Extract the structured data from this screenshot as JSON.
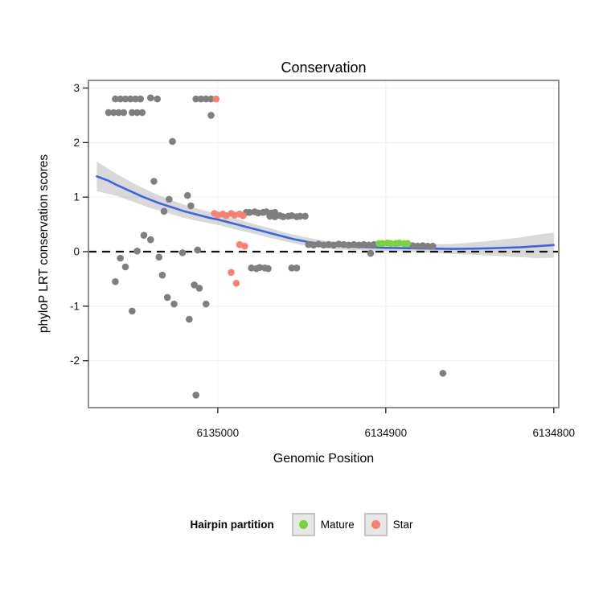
{
  "title": "Conservation",
  "axes": {
    "x_label": "Genomic Position",
    "y_label": "phyloP LRT conservation scores"
  },
  "legend": {
    "title": "Hairpin partition",
    "items": [
      {
        "label": "Mature",
        "color": "#7bd33b"
      },
      {
        "label": "Star",
        "color": "#fa8072"
      }
    ]
  },
  "chart_data": {
    "type": "scatter",
    "title": "Conservation",
    "xlabel": "Genomic Position",
    "ylabel": "phyloP LRT conservation scores",
    "x_reversed": true,
    "x_domain": [
      6135077,
      6134797
    ],
    "y_domain": [
      -2.86,
      3.14
    ],
    "x_ticks": [
      {
        "value": 6135000,
        "label": "6135000"
      },
      {
        "value": 6134900,
        "label": "6134900"
      },
      {
        "value": 6134800,
        "label": "6134800"
      }
    ],
    "y_ticks": [
      {
        "value": 3,
        "label": "3"
      },
      {
        "value": 2,
        "label": "2"
      },
      {
        "value": 1,
        "label": "1"
      },
      {
        "value": 0,
        "label": "0"
      },
      {
        "value": -1,
        "label": "-1"
      },
      {
        "value": -2,
        "label": "-2"
      }
    ],
    "zero_line": 0,
    "colors": {
      "g": "#7f7f7f",
      "m": "#7bd33b",
      "s": "#fa8072",
      "smooth": "#3b65e6",
      "band": "rgba(130,130,130,0.3)",
      "grid": "#f0f0f0",
      "border": "#8f8f8f",
      "zero": "#111111"
    },
    "points": [
      [
        6135065,
        2.55,
        "g"
      ],
      [
        6135062,
        2.55,
        "g"
      ],
      [
        6135059,
        2.55,
        "g"
      ],
      [
        6135056,
        2.55,
        "g"
      ],
      [
        6135051,
        2.55,
        "g"
      ],
      [
        6135048,
        2.55,
        "g"
      ],
      [
        6135045,
        2.55,
        "g"
      ],
      [
        6135061,
        2.8,
        "g"
      ],
      [
        6135058,
        2.8,
        "g"
      ],
      [
        6135055,
        2.8,
        "g"
      ],
      [
        6135052,
        2.8,
        "g"
      ],
      [
        6135049,
        2.8,
        "g"
      ],
      [
        6135046,
        2.8,
        "g"
      ],
      [
        6135040,
        2.82,
        "g"
      ],
      [
        6135036,
        2.8,
        "g"
      ],
      [
        6135013,
        2.8,
        "g"
      ],
      [
        6135010,
        2.8,
        "g"
      ],
      [
        6135007,
        2.8,
        "g"
      ],
      [
        6135004,
        2.8,
        "g"
      ],
      [
        6135001,
        2.8,
        "s"
      ],
      [
        6135004,
        2.5,
        "g"
      ],
      [
        6135027,
        2.02,
        "g"
      ],
      [
        6135038,
        1.29,
        "g"
      ],
      [
        6135032,
        0.74,
        "g"
      ],
      [
        6135029,
        0.96,
        "g"
      ],
      [
        6135018,
        1.03,
        "g"
      ],
      [
        6135016,
        0.84,
        "g"
      ],
      [
        6135044,
        0.3,
        "g"
      ],
      [
        6135040,
        0.22,
        "g"
      ],
      [
        6135048,
        0.01,
        "g"
      ],
      [
        6135058,
        -0.12,
        "g"
      ],
      [
        6135055,
        -0.28,
        "g"
      ],
      [
        6135061,
        -0.55,
        "g"
      ],
      [
        6135051,
        -1.09,
        "g"
      ],
      [
        6135035,
        -0.1,
        "g"
      ],
      [
        6135033,
        -0.43,
        "g"
      ],
      [
        6135030,
        -0.84,
        "g"
      ],
      [
        6135026,
        -0.96,
        "g"
      ],
      [
        6135017,
        -1.24,
        "g"
      ],
      [
        6135014,
        -0.61,
        "g"
      ],
      [
        6135011,
        -0.67,
        "g"
      ],
      [
        6135007,
        -0.96,
        "g"
      ],
      [
        6135021,
        -0.02,
        "g"
      ],
      [
        6135012,
        0.03,
        "g"
      ],
      [
        6135013,
        -2.63,
        "g"
      ],
      [
        6135002,
        0.7,
        "s"
      ],
      [
        6135000,
        0.67,
        "s"
      ],
      [
        6134997,
        0.69,
        "s"
      ],
      [
        6134995,
        0.66,
        "s"
      ],
      [
        6134992,
        0.7,
        "s"
      ],
      [
        6134990,
        0.67,
        "s"
      ],
      [
        6134987,
        0.69,
        "s"
      ],
      [
        6134985,
        0.66,
        "s"
      ],
      [
        6134983,
        0.72,
        "g"
      ],
      [
        6134981,
        0.72,
        "g"
      ],
      [
        6134978,
        0.73,
        "g"
      ],
      [
        6134976,
        0.71,
        "g"
      ],
      [
        6134973,
        0.72,
        "g"
      ],
      [
        6134971,
        0.73,
        "g"
      ],
      [
        6134968,
        0.71,
        "g"
      ],
      [
        6134966,
        0.72,
        "g"
      ],
      [
        6134969,
        0.65,
        "g"
      ],
      [
        6134966,
        0.64,
        "g"
      ],
      [
        6134963,
        0.66,
        "g"
      ],
      [
        6134961,
        0.64,
        "g"
      ],
      [
        6134958,
        0.65,
        "g"
      ],
      [
        6134956,
        0.66,
        "g"
      ],
      [
        6134953,
        0.64,
        "g"
      ],
      [
        6134951,
        0.65,
        "g"
      ],
      [
        6134948,
        0.65,
        "g"
      ],
      [
        6134987,
        0.13,
        "s"
      ],
      [
        6134984,
        0.1,
        "s"
      ],
      [
        6134992,
        -0.38,
        "s"
      ],
      [
        6134989,
        -0.58,
        "s"
      ],
      [
        6134980,
        -0.3,
        "g"
      ],
      [
        6134977,
        -0.31,
        "g"
      ],
      [
        6134975,
        -0.29,
        "g"
      ],
      [
        6134972,
        -0.3,
        "g"
      ],
      [
        6134970,
        -0.31,
        "g"
      ],
      [
        6134956,
        -0.3,
        "g"
      ],
      [
        6134953,
        -0.3,
        "g"
      ],
      [
        6134946,
        0.13,
        "g"
      ],
      [
        6134943,
        0.12,
        "g"
      ],
      [
        6134940,
        0.14,
        "g"
      ],
      [
        6134937,
        0.12,
        "g"
      ],
      [
        6134934,
        0.13,
        "g"
      ],
      [
        6134931,
        0.12,
        "g"
      ],
      [
        6134928,
        0.14,
        "g"
      ],
      [
        6134925,
        0.13,
        "g"
      ],
      [
        6134922,
        0.12,
        "g"
      ],
      [
        6134919,
        0.13,
        "g"
      ],
      [
        6134916,
        0.12,
        "g"
      ],
      [
        6134913,
        0.13,
        "g"
      ],
      [
        6134910,
        0.12,
        "g"
      ],
      [
        6134907,
        0.13,
        "g"
      ],
      [
        6134909,
        -0.03,
        "g"
      ],
      [
        6134904,
        0.15,
        "m"
      ],
      [
        6134902,
        0.15,
        "m"
      ],
      [
        6134899,
        0.16,
        "m"
      ],
      [
        6134897,
        0.15,
        "m"
      ],
      [
        6134894,
        0.15,
        "m"
      ],
      [
        6134892,
        0.16,
        "m"
      ],
      [
        6134889,
        0.15,
        "m"
      ],
      [
        6134887,
        0.15,
        "m"
      ],
      [
        6134884,
        0.11,
        "g"
      ],
      [
        6134881,
        0.1,
        "g"
      ],
      [
        6134878,
        0.11,
        "g"
      ],
      [
        6134875,
        0.1,
        "g"
      ],
      [
        6134872,
        0.1,
        "g"
      ],
      [
        6134866,
        -2.23,
        "g"
      ]
    ],
    "smooth_line": [
      [
        6135072,
        1.38
      ],
      [
        6135065,
        1.3
      ],
      [
        6135060,
        1.22
      ],
      [
        6135055,
        1.15
      ],
      [
        6135050,
        1.08
      ],
      [
        6135045,
        1.01
      ],
      [
        6135040,
        0.95
      ],
      [
        6135035,
        0.89
      ],
      [
        6135030,
        0.84
      ],
      [
        6135025,
        0.79
      ],
      [
        6135020,
        0.74
      ],
      [
        6135015,
        0.7
      ],
      [
        6135010,
        0.66
      ],
      [
        6135005,
        0.62
      ],
      [
        6135000,
        0.59
      ],
      [
        6134995,
        0.55
      ],
      [
        6134990,
        0.51
      ],
      [
        6134985,
        0.47
      ],
      [
        6134980,
        0.43
      ],
      [
        6134975,
        0.39
      ],
      [
        6134970,
        0.35
      ],
      [
        6134965,
        0.31
      ],
      [
        6134960,
        0.27
      ],
      [
        6134955,
        0.23
      ],
      [
        6134950,
        0.2
      ],
      [
        6134945,
        0.17
      ],
      [
        6134940,
        0.15
      ],
      [
        6134935,
        0.13
      ],
      [
        6134930,
        0.11
      ],
      [
        6134925,
        0.1
      ],
      [
        6134920,
        0.09
      ],
      [
        6134915,
        0.085
      ],
      [
        6134910,
        0.08
      ],
      [
        6134905,
        0.075
      ],
      [
        6134900,
        0.07
      ],
      [
        6134890,
        0.065
      ],
      [
        6134880,
        0.06
      ],
      [
        6134870,
        0.055
      ],
      [
        6134860,
        0.05
      ],
      [
        6134850,
        0.055
      ],
      [
        6134840,
        0.06
      ],
      [
        6134830,
        0.07
      ],
      [
        6134820,
        0.08
      ],
      [
        6134810,
        0.1
      ],
      [
        6134800,
        0.12
      ]
    ],
    "confidence_band": [
      [
        6135072,
        1.11,
        1.65
      ],
      [
        6135060,
        1.02,
        1.42
      ],
      [
        6135050,
        0.91,
        1.25
      ],
      [
        6135040,
        0.8,
        1.1
      ],
      [
        6135030,
        0.71,
        0.97
      ],
      [
        6135020,
        0.62,
        0.86
      ],
      [
        6135010,
        0.55,
        0.77
      ],
      [
        6135000,
        0.49,
        0.69
      ],
      [
        6134990,
        0.41,
        0.61
      ],
      [
        6134980,
        0.34,
        0.52
      ],
      [
        6134970,
        0.26,
        0.44
      ],
      [
        6134960,
        0.19,
        0.35
      ],
      [
        6134950,
        0.12,
        0.28
      ],
      [
        6134940,
        0.08,
        0.22
      ],
      [
        6134930,
        0.04,
        0.18
      ],
      [
        6134920,
        0.03,
        0.15
      ],
      [
        6134910,
        0.02,
        0.14
      ],
      [
        6134900,
        0.01,
        0.13
      ],
      [
        6134890,
        0.005,
        0.125
      ],
      [
        6134880,
        -0.01,
        0.13
      ],
      [
        6134870,
        -0.025,
        0.135
      ],
      [
        6134860,
        -0.04,
        0.14
      ],
      [
        6134850,
        -0.055,
        0.165
      ],
      [
        6134840,
        -0.07,
        0.19
      ],
      [
        6134830,
        -0.085,
        0.225
      ],
      [
        6134820,
        -0.1,
        0.26
      ],
      [
        6134810,
        -0.12,
        0.31
      ],
      [
        6134800,
        -0.11,
        0.35
      ]
    ]
  }
}
